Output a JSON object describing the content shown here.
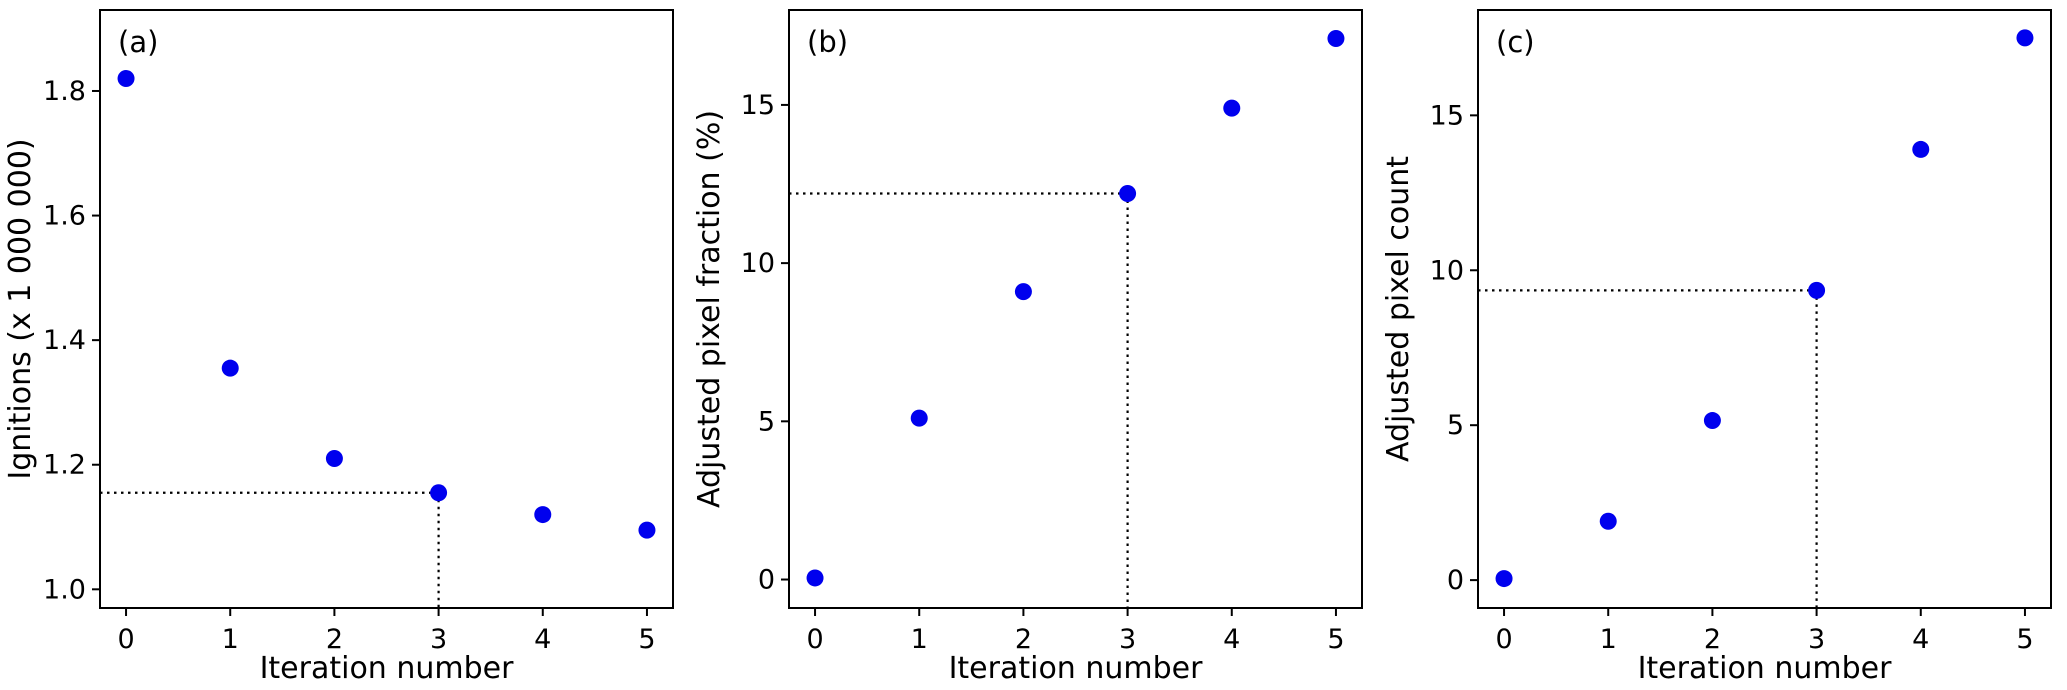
{
  "figure": {
    "background": "#ffffff",
    "point_color": "#0000ee",
    "axis_color": "#000000"
  },
  "chart_data": [
    {
      "type": "scatter",
      "panel_label": "(a)",
      "xlabel": "Iteration number",
      "ylabel": "Ignitions (x 1 000 000)",
      "x": [
        0,
        1,
        2,
        3,
        4,
        5
      ],
      "y": [
        1.82,
        1.355,
        1.21,
        1.155,
        1.12,
        1.095
      ],
      "xlim": [
        -0.25,
        5.25
      ],
      "ylim": [
        0.97,
        1.93
      ],
      "xticks": [
        0,
        1,
        2,
        3,
        4,
        5
      ],
      "xtick_labels": [
        "0",
        "1",
        "2",
        "3",
        "4",
        "5"
      ],
      "yticks": [
        1.0,
        1.2,
        1.4,
        1.6,
        1.8
      ],
      "ytick_labels": [
        "1.0",
        "1.2",
        "1.4",
        "1.6",
        "1.8"
      ],
      "crosshair": {
        "x": 3,
        "y": 1.155
      },
      "grid": false,
      "legend": null
    },
    {
      "type": "scatter",
      "panel_label": "(b)",
      "xlabel": "Iteration number",
      "ylabel": "Adjusted pixel fraction (%)",
      "x": [
        0,
        1,
        2,
        3,
        4,
        5
      ],
      "y": [
        0.05,
        5.1,
        9.1,
        12.2,
        14.9,
        17.1
      ],
      "xlim": [
        -0.25,
        5.25
      ],
      "ylim": [
        -0.9,
        18.0
      ],
      "xticks": [
        0,
        1,
        2,
        3,
        4,
        5
      ],
      "xtick_labels": [
        "0",
        "1",
        "2",
        "3",
        "4",
        "5"
      ],
      "yticks": [
        0,
        5,
        10,
        15
      ],
      "ytick_labels": [
        "0",
        "5",
        "10",
        "15"
      ],
      "crosshair": {
        "x": 3,
        "y": 12.2
      },
      "grid": false,
      "legend": null
    },
    {
      "type": "scatter",
      "panel_label": "(c)",
      "xlabel": "Iteration number",
      "ylabel": "Adjusted pixel count",
      "x": [
        0,
        1,
        2,
        3,
        4,
        5
      ],
      "y": [
        0.05,
        1.9,
        5.15,
        9.35,
        13.9,
        17.5
      ],
      "xlim": [
        -0.25,
        5.25
      ],
      "ylim": [
        -0.9,
        18.4
      ],
      "xticks": [
        0,
        1,
        2,
        3,
        4,
        5
      ],
      "xtick_labels": [
        "0",
        "1",
        "2",
        "3",
        "4",
        "5"
      ],
      "yticks": [
        0,
        5,
        10,
        15
      ],
      "ytick_labels": [
        "0",
        "5",
        "10",
        "15"
      ],
      "crosshair": {
        "x": 3,
        "y": 9.35
      },
      "grid": false,
      "legend": null
    }
  ]
}
